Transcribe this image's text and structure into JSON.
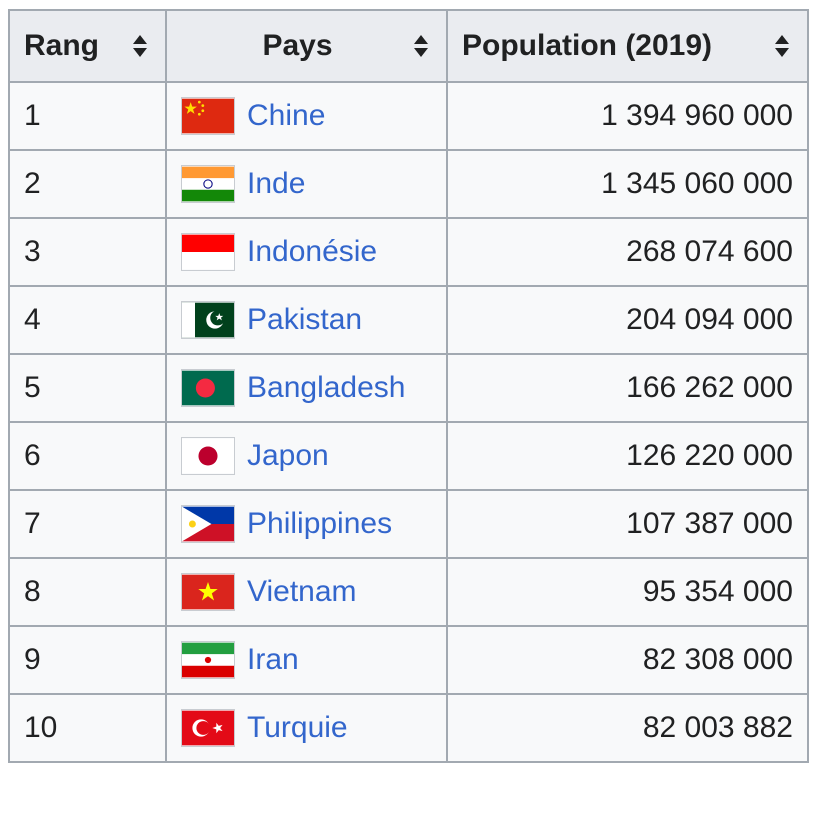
{
  "table": {
    "headers": {
      "rank": "Rang",
      "country": "Pays",
      "population": "Population (2019)"
    },
    "rows": [
      {
        "rank": "1",
        "country": "Chine",
        "population": "1 394 960 000",
        "flag_icon": "china-flag-icon"
      },
      {
        "rank": "2",
        "country": "Inde",
        "population": "1 345 060 000",
        "flag_icon": "india-flag-icon"
      },
      {
        "rank": "3",
        "country": "Indonésie",
        "population": "268 074 600",
        "flag_icon": "indonesia-flag-icon"
      },
      {
        "rank": "4",
        "country": "Pakistan",
        "population": "204 094 000",
        "flag_icon": "pakistan-flag-icon"
      },
      {
        "rank": "5",
        "country": "Bangladesh",
        "population": "166 262 000",
        "flag_icon": "bangladesh-flag-icon"
      },
      {
        "rank": "6",
        "country": "Japon",
        "population": "126 220 000",
        "flag_icon": "japan-flag-icon"
      },
      {
        "rank": "7",
        "country": "Philippines",
        "population": "107 387 000",
        "flag_icon": "philippines-flag-icon"
      },
      {
        "rank": "8",
        "country": "Vietnam",
        "population": "95 354 000",
        "flag_icon": "vietnam-flag-icon"
      },
      {
        "rank": "9",
        "country": "Iran",
        "population": "82 308 000",
        "flag_icon": "iran-flag-icon"
      },
      {
        "rank": "10",
        "country": "Turquie",
        "population": "82 003 882",
        "flag_icon": "turkey-flag-icon"
      }
    ]
  },
  "colors": {
    "link": "#3366cc",
    "header_bg": "#eaecf0",
    "cell_bg": "#f8f9fa",
    "border": "#a2a9b1",
    "text": "#202122"
  }
}
